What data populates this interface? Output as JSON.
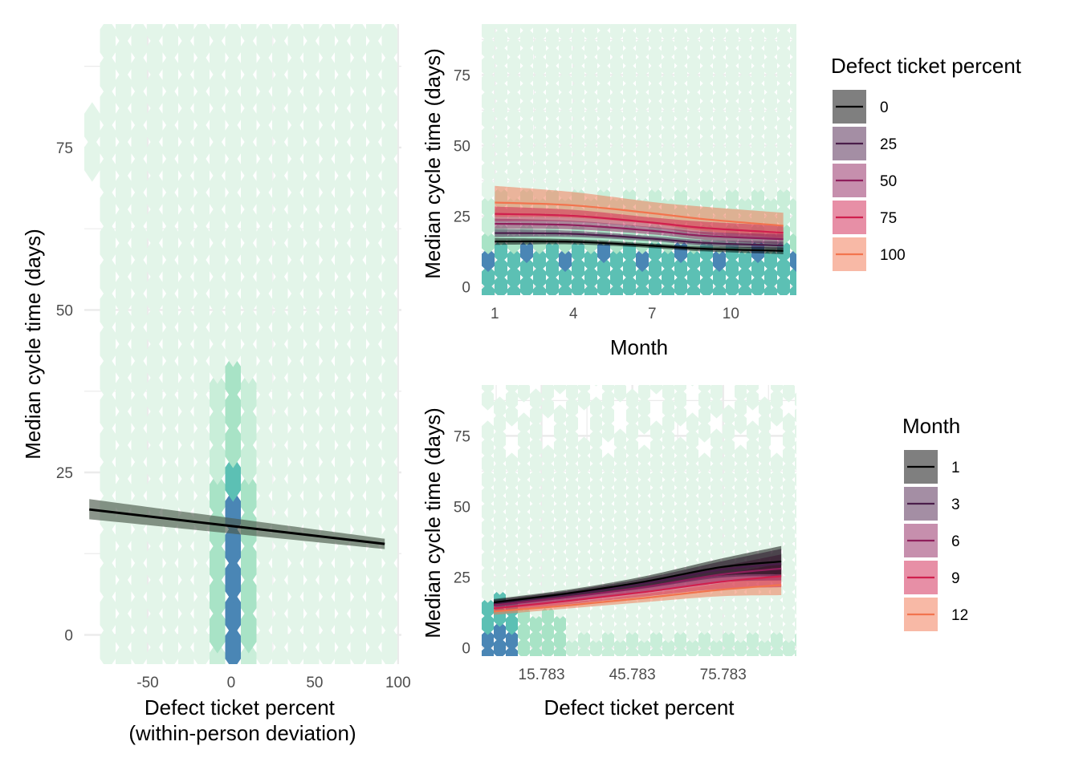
{
  "colors": {
    "hex_light": "#e3f5e9",
    "hex_mid": "#a8e3c6",
    "hex_teal": "#5cc0b4",
    "hex_blue": "#4a86b5",
    "grid": "#ebebeb",
    "gradient": [
      "#000000",
      "#4a1d4a",
      "#8e1f5c",
      "#d0204e",
      "#f2744e"
    ]
  },
  "chart_data": [
    {
      "id": "left",
      "type": "line",
      "xlabel": "Defect ticket percent\n(within-person deviation)",
      "ylabel": "Median cycle time (days)",
      "xlim": [
        -88,
        102
      ],
      "ylim": [
        -4.5,
        94
      ],
      "xticks": [
        -50,
        0,
        50,
        100
      ],
      "xtick_labels": [
        "-50",
        "0",
        "50",
        "100"
      ],
      "yticks": [
        0,
        25,
        50,
        75
      ],
      "ytick_labels": [
        "0",
        "25",
        "50",
        "75"
      ],
      "background": "hexbin",
      "series": [
        {
          "x": [
            -85,
            92
          ],
          "y": [
            19.3,
            14.0
          ],
          "lower": [
            17.8,
            13.2
          ],
          "upper": [
            20.9,
            14.8
          ]
        }
      ]
    },
    {
      "id": "top-right",
      "type": "line",
      "xlabel": "Month",
      "ylabel": "Median cycle time (days)",
      "xlim": [
        0.5,
        12.5
      ],
      "ylim": [
        -3,
        93
      ],
      "xticks": [
        1,
        4,
        7,
        10
      ],
      "xtick_labels": [
        "1",
        "4",
        "7",
        "10"
      ],
      "yticks": [
        0,
        25,
        50,
        75
      ],
      "ytick_labels": [
        "0",
        "25",
        "50",
        "75"
      ],
      "background": "hexbin",
      "x": [
        1,
        4,
        7,
        9,
        12
      ],
      "series": [
        {
          "name": "0",
          "y": [
            16.0,
            15.9,
            14.5,
            13.4,
            12.7
          ],
          "lower": [
            14.8,
            15.0,
            13.7,
            12.5,
            11.5
          ],
          "upper": [
            17.2,
            16.8,
            15.3,
            14.3,
            13.9
          ]
        },
        {
          "name": "25",
          "y": [
            19.0,
            18.7,
            17.0,
            15.5,
            14.6
          ],
          "lower": [
            17.6,
            17.6,
            16.1,
            14.5,
            13.2
          ],
          "upper": [
            20.4,
            19.8,
            17.9,
            16.5,
            16.0
          ]
        },
        {
          "name": "50",
          "y": [
            22.3,
            21.8,
            19.8,
            18.0,
            16.8
          ],
          "lower": [
            20.5,
            20.3,
            18.5,
            16.6,
            15.0
          ],
          "upper": [
            24.1,
            23.3,
            21.1,
            19.4,
            18.6
          ]
        },
        {
          "name": "75",
          "y": [
            25.8,
            25.1,
            22.7,
            20.8,
            19.1
          ],
          "lower": [
            23.2,
            23.0,
            20.9,
            18.6,
            16.6
          ],
          "upper": [
            28.4,
            27.2,
            24.5,
            23.0,
            21.6
          ]
        },
        {
          "name": "100",
          "y": [
            29.8,
            28.8,
            26.0,
            23.9,
            21.6
          ],
          "lower": [
            24.8,
            24.4,
            22.2,
            19.7,
            17.2
          ],
          "upper": [
            35.7,
            33.5,
            30.0,
            28.3,
            26.2
          ]
        }
      ],
      "legend": {
        "title": "Defect ticket percent",
        "entries": [
          "0",
          "25",
          "50",
          "75",
          "100"
        ],
        "placement": "right"
      }
    },
    {
      "id": "bottom-right",
      "type": "line",
      "xlabel": "Defect ticket percent",
      "ylabel": "Median cycle time (days)",
      "xlim": [
        -4,
        100
      ],
      "ylim": [
        -3,
        93
      ],
      "xticks": [
        15.783,
        45.783,
        75.783
      ],
      "xtick_labels": [
        "15.783",
        "45.783",
        "75.783"
      ],
      "yticks": [
        0,
        25,
        50,
        75
      ],
      "ytick_labels": [
        "0",
        "25",
        "50",
        "75"
      ],
      "background": "hexbin",
      "x": [
        0,
        25,
        50,
        75,
        95
      ],
      "series": [
        {
          "name": "1",
          "y": [
            16.0,
            19.3,
            23.4,
            28.5,
            30.5
          ],
          "lower": [
            14.8,
            18.0,
            21.5,
            25.5,
            26.0
          ],
          "upper": [
            17.2,
            20.6,
            25.3,
            31.5,
            36.0
          ]
        },
        {
          "name": "3",
          "y": [
            15.7,
            18.9,
            22.8,
            27.6,
            29.7
          ],
          "lower": [
            14.5,
            17.6,
            21.0,
            24.8,
            25.3
          ],
          "upper": [
            16.9,
            20.2,
            24.6,
            30.5,
            35.0
          ]
        },
        {
          "name": "6",
          "y": [
            15.0,
            18.0,
            21.5,
            25.9,
            28.0
          ],
          "lower": [
            13.8,
            16.8,
            19.8,
            23.2,
            23.8
          ],
          "upper": [
            16.2,
            19.2,
            23.2,
            28.7,
            33.0
          ]
        },
        {
          "name": "9",
          "y": [
            13.9,
            16.6,
            19.7,
            23.3,
            25.3
          ],
          "lower": [
            12.7,
            15.4,
            18.1,
            20.8,
            21.4
          ],
          "upper": [
            15.1,
            17.8,
            21.3,
            25.8,
            29.8
          ]
        },
        {
          "name": "12",
          "y": [
            12.8,
            15.0,
            17.6,
            20.5,
            22.2
          ],
          "lower": [
            11.6,
            13.9,
            16.1,
            18.2,
            18.6
          ],
          "upper": [
            14.0,
            16.1,
            19.1,
            22.8,
            26.2
          ]
        }
      ],
      "legend": {
        "title": "Month",
        "entries": [
          "1",
          "3",
          "6",
          "9",
          "12"
        ],
        "placement": "right"
      }
    }
  ]
}
